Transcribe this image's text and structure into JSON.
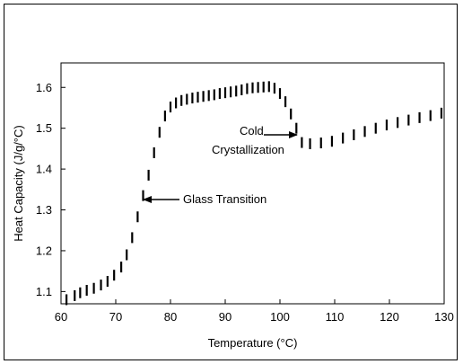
{
  "chart_data": {
    "type": "scatter",
    "title": "",
    "xlabel": "Temperature (°C)",
    "ylabel": "Heat Capacity (J/g/°C)",
    "xlim": [
      60,
      130
    ],
    "ylim": [
      1.07,
      1.66
    ],
    "x_ticks": [
      60,
      70,
      80,
      90,
      100,
      110,
      120,
      130
    ],
    "y_ticks": [
      1.1,
      1.2,
      1.3,
      1.4,
      1.5,
      1.6
    ],
    "grid": false,
    "legend": "none",
    "marker": "vertical-dash",
    "color": "#000000",
    "x": [
      61,
      62.5,
      63.5,
      64.7,
      66,
      67.3,
      68.5,
      69.7,
      71,
      72,
      73,
      74,
      75,
      76,
      77,
      78,
      79,
      80,
      81,
      82,
      83,
      84,
      85,
      86,
      87,
      88,
      89,
      90,
      91,
      92,
      93,
      94,
      95,
      96,
      97,
      98,
      99,
      100,
      101,
      102,
      103,
      104,
      105.5,
      107.5,
      109.5,
      111.5,
      113.5,
      115.5,
      117.5,
      119.5,
      121.5,
      123.5,
      125.5,
      127.5,
      129.5
    ],
    "y": [
      1.08,
      1.09,
      1.097,
      1.103,
      1.108,
      1.116,
      1.125,
      1.14,
      1.16,
      1.19,
      1.232,
      1.283,
      1.335,
      1.385,
      1.44,
      1.49,
      1.53,
      1.552,
      1.562,
      1.568,
      1.571,
      1.574,
      1.576,
      1.578,
      1.58,
      1.582,
      1.585,
      1.587,
      1.589,
      1.591,
      1.594,
      1.597,
      1.599,
      1.6,
      1.601,
      1.602,
      1.598,
      1.585,
      1.565,
      1.535,
      1.5,
      1.465,
      1.462,
      1.464,
      1.468,
      1.476,
      1.484,
      1.492,
      1.5,
      1.508,
      1.514,
      1.52,
      1.526,
      1.531,
      1.537
    ],
    "annotations": [
      {
        "text": "Glass Transition",
        "point": [
          75,
          1.315
        ]
      },
      {
        "text": "Cold",
        "point": [
          103.5,
          1.483
        ]
      },
      {
        "text": "Crystallization",
        "point": [
          103.5,
          1.483
        ]
      }
    ]
  }
}
